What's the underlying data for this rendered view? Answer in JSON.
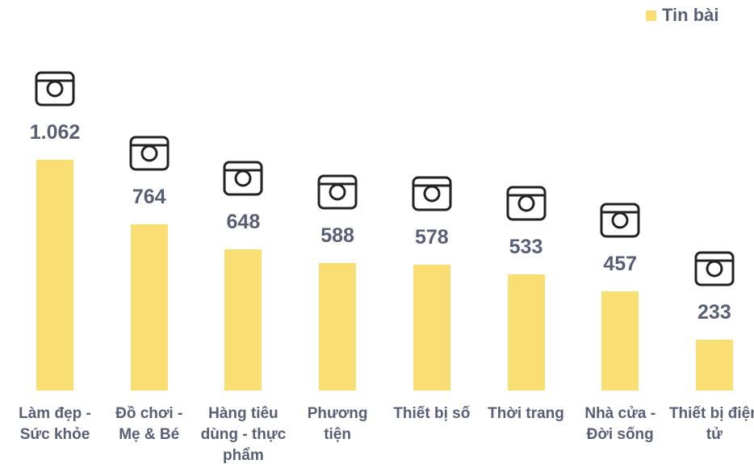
{
  "chart_data": {
    "type": "bar",
    "categories": [
      "Làm đẹp - Sức khỏe",
      "Đồ chơi - Mẹ & Bé",
      "Hàng tiêu dùng - thực phẩm",
      "Phương tiện",
      "Thiết bị số",
      "Thời trang",
      "Nhà cửa - Đời sống",
      "Thiết bị điện tử"
    ],
    "series": [
      {
        "name": "Tin bài",
        "color": "#f9df73",
        "values": [
          1062,
          764,
          648,
          588,
          578,
          533,
          457,
          233
        ],
        "value_labels": [
          "1.062",
          "764",
          "648",
          "588",
          "578",
          "533",
          "457",
          "233"
        ]
      }
    ],
    "legend": "top-right"
  }
}
